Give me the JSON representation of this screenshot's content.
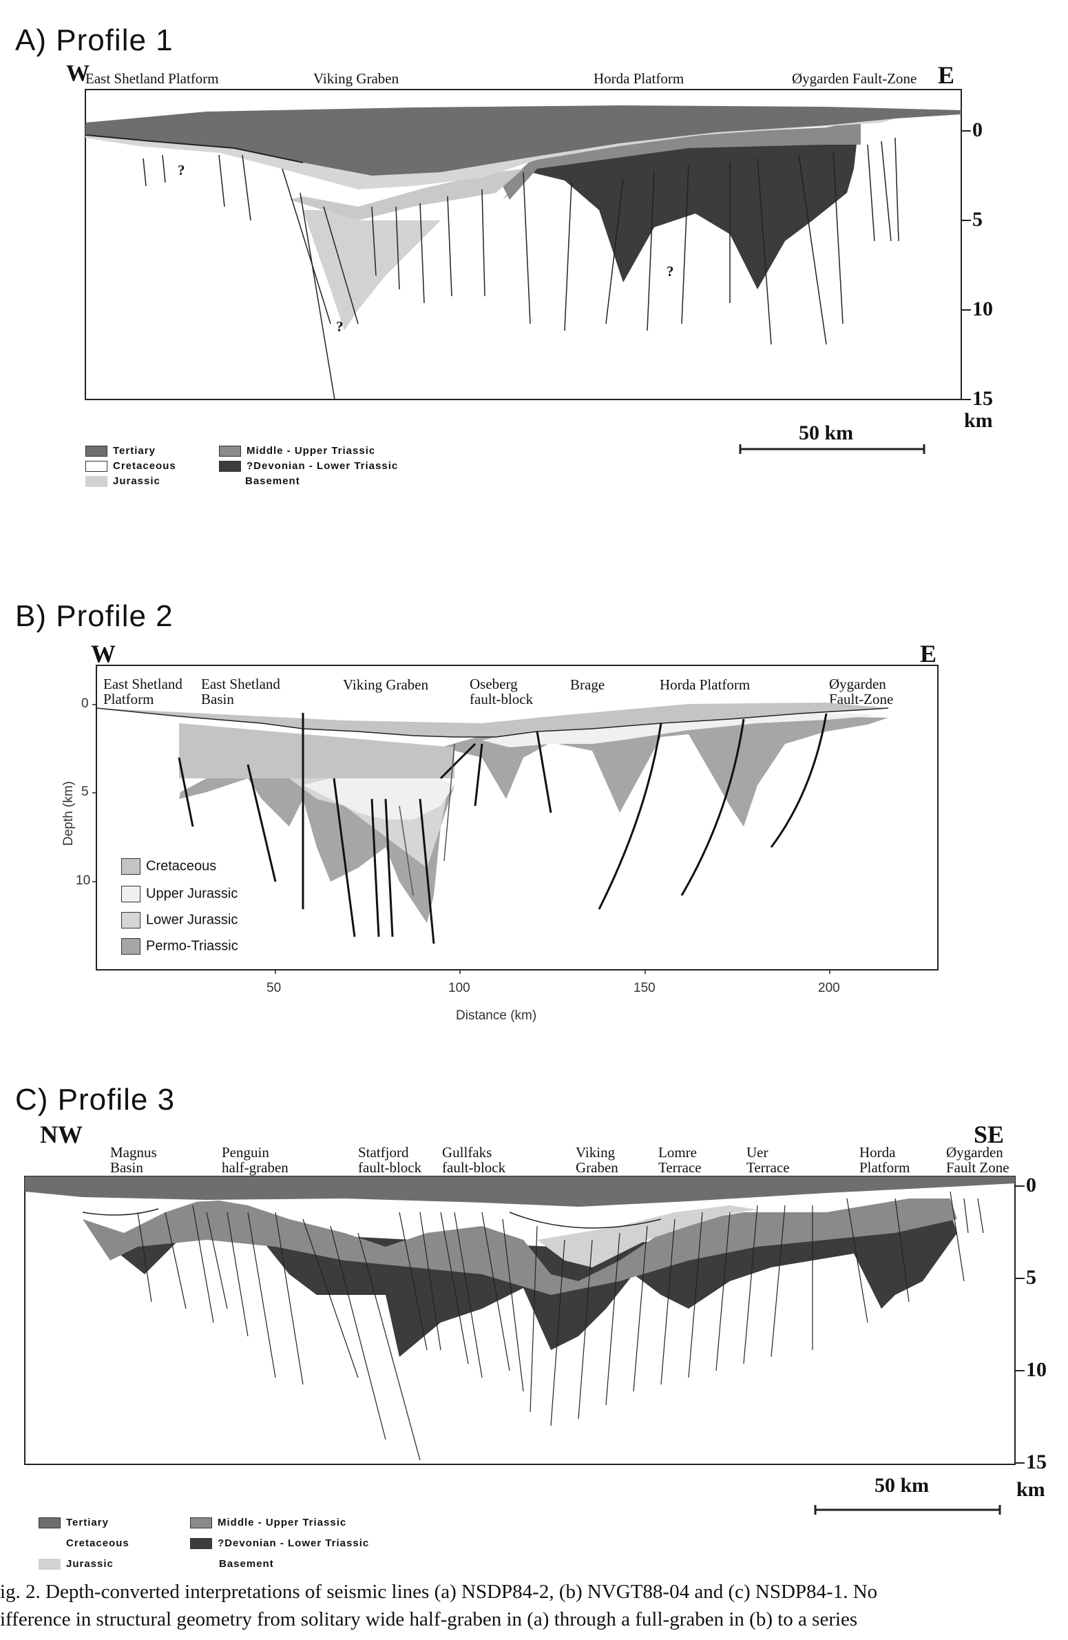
{
  "colors": {
    "tertiary": "#6e6e6e",
    "cretaceous": "#ffffff",
    "jurassic": "#d2d2d2",
    "middle_upper_triassic": "#8a8a8a",
    "devonian_lower_triassic": "#3c3c3c",
    "b_cretaceous": "#c4c4c4",
    "b_upper_jurassic": "#f0f0f0",
    "b_lower_jurassic": "#d6d6d6",
    "b_permo_triassic": "#a6a6a6"
  },
  "panel_a": {
    "title": "A)  Profile 1",
    "dir_west": "W",
    "dir_east": "E",
    "regions": [
      "East Shetland Platform",
      "Viking Graben",
      "Horda Platform",
      "Øygarden Fault-Zone"
    ],
    "question_mark": "?",
    "depth_ticks": [
      "0",
      "5",
      "10",
      "15"
    ],
    "depth_unit": "km",
    "scale_label": "50 km",
    "legend": {
      "tertiary": "Tertiary",
      "cretaceous": "Cretaceous",
      "jurassic": "Jurassic",
      "middle_upper_triassic": "Middle - Upper Triassic",
      "devonian_lower_triassic": "?Devonian - Lower Triassic",
      "basement": "Basement"
    }
  },
  "panel_b": {
    "title": "B)  Profile 2",
    "dir_west": "W",
    "dir_east": "E",
    "regions": [
      "East Shetland\nPlatform",
      "East Shetland\nBasin",
      "Viking Graben",
      "Oseberg\nfault-block",
      "Brage",
      "Horda Platform",
      "Øygarden\nFault-Zone"
    ],
    "ylabel": "Depth (km)",
    "yticks": [
      "0",
      "5",
      "10"
    ],
    "xticks": [
      "50",
      "100",
      "150",
      "200"
    ],
    "xlabel": "Distance (km)",
    "legend": [
      "Cretaceous",
      "Upper Jurassic",
      "Lower Jurassic",
      "Permo-Triassic"
    ]
  },
  "panel_c": {
    "title": "C)  Profile 3",
    "dir_nw": "NW",
    "dir_se": "SE",
    "regions": [
      "Magnus\nBasin",
      "Penguin\nhalf-graben",
      "Statfjord\nfault-block",
      "Gullfaks\nfault-block",
      "Viking\nGraben",
      "Lomre\nTerrace",
      "Uer\nTerrace",
      "Horda\nPlatform",
      "Øygarden\nFault Zone"
    ],
    "depth_ticks": [
      "0",
      "5",
      "10",
      "15"
    ],
    "depth_unit": "km",
    "scale_label": "50 km",
    "legend": {
      "tertiary": "Tertiary",
      "cretaceous": "Cretaceous",
      "jurassic": "Jurassic",
      "middle_upper_triassic": "Middle - Upper Triassic",
      "devonian_lower_triassic": "?Devonian - Lower Triassic",
      "basement": "Basement"
    }
  },
  "caption": {
    "line1": "ig. 2. Depth-converted interpretations of seismic lines (a) NSDP84-2, (b) NVGT88-04 and (c) NSDP84-1. No",
    "line2": "ifference in structural geometry from solitary wide half-graben in (a) through a full-graben in (b) to a series"
  }
}
